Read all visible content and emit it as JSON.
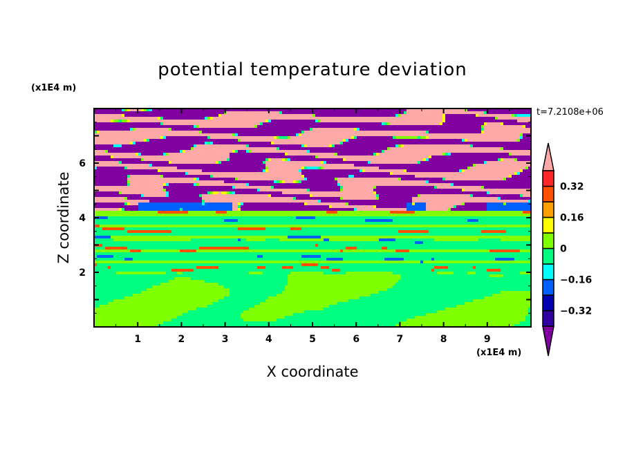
{
  "chart_data": {
    "type": "heatmap",
    "title": "potential temperature deviation",
    "xlabel": "X coordinate",
    "ylabel": "Z coordinate",
    "x_unit": "(x1E4 m)",
    "z_unit": "(x1E4 m)",
    "time_label": "t=7.2108e+06",
    "xlim": [
      0,
      10
    ],
    "ylim": [
      0,
      8
    ],
    "x_ticks": [
      "1",
      "2",
      "3",
      "4",
      "5",
      "6",
      "7",
      "8",
      "9"
    ],
    "x_tick_values": [
      1,
      2,
      3,
      4,
      5,
      6,
      7,
      8,
      9
    ],
    "y_ticks": [
      "2",
      "4",
      "6"
    ],
    "y_tick_values": [
      2,
      4,
      6
    ],
    "colorbar": {
      "levels": [
        -0.4,
        -0.32,
        -0.24,
        -0.16,
        -0.08,
        0,
        0.08,
        0.16,
        0.24,
        0.32,
        0.4
      ],
      "labels": [
        "0.32",
        "0.16",
        "0",
        "−0.16",
        "−0.32"
      ],
      "label_values": [
        0.32,
        0.16,
        0,
        -0.16,
        -0.32
      ],
      "colors_low_to_high": [
        "#3000a0",
        "#0000b0",
        "#0060ff",
        "#00ffff",
        "#00ff80",
        "#80ff00",
        "#ffff00",
        "#ffa000",
        "#ff5000",
        "#ff2828"
      ],
      "under_color": "#8000a0",
      "over_color": "#ffa8a8",
      "extend": "both"
    }
  }
}
